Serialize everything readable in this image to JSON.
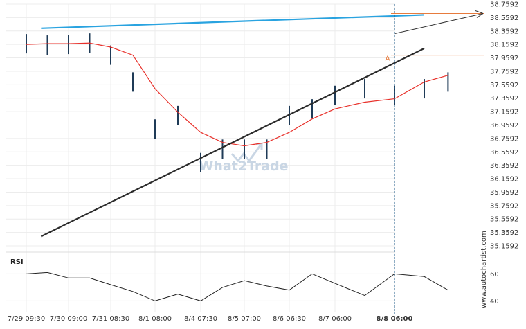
{
  "chart_data": {
    "type": "line",
    "title": "",
    "instrument_panel": {
      "y_ticks": [
        "38.7592",
        "38.5592",
        "38.3592",
        "38.1592",
        "37.9592",
        "37.7592",
        "37.5592",
        "37.3592",
        "37.1592",
        "36.9592",
        "36.7592",
        "36.5592",
        "36.3592",
        "36.1592",
        "35.9592",
        "35.7592",
        "35.5592",
        "35.3592",
        "35.1592"
      ],
      "ylim": [
        35.1592,
        38.7592
      ],
      "x_ticks": [
        "7/29 09:30",
        "7/30 09:00",
        "7/31 08:30",
        "8/1 08:00",
        "8/4 07:30",
        "8/5 07:00",
        "8/6 06:30",
        "8/7 06:00",
        "8/8 06:00"
      ],
      "grid": true,
      "series": [
        {
          "style": "bars",
          "color": "#1f3b57",
          "x": [
            0,
            0.5,
            1,
            1.5,
            2,
            2.5,
            3,
            3.5,
            4,
            4.5,
            5,
            5.5,
            6,
            6.5,
            7,
            7.5,
            8,
            8.5,
            8.9
          ],
          "values": [
            38.17,
            38.15,
            38.16,
            38.18,
            38.0,
            37.6,
            36.9,
            37.1,
            36.4,
            36.6,
            36.6,
            36.6,
            37.1,
            37.2,
            37.4,
            37.5,
            37.4,
            37.5,
            37.6
          ]
        },
        {
          "style": "line",
          "color": "#e8302a",
          "x": [
            0,
            0.5,
            1,
            1.5,
            2,
            2.5,
            3,
            3.5,
            4,
            4.5,
            5,
            5.5,
            6,
            6.5,
            7,
            7.5,
            8,
            8.5,
            8.9
          ],
          "values": [
            38.16,
            38.17,
            38.17,
            38.18,
            38.12,
            38.0,
            37.5,
            37.15,
            36.85,
            36.7,
            36.65,
            36.7,
            36.85,
            37.05,
            37.2,
            37.3,
            37.35,
            37.6,
            37.7
          ]
        }
      ],
      "trendlines": [
        {
          "name": "resistance",
          "color": "#29a3e0",
          "x": [
            0.35,
            8.5
          ],
          "values": [
            38.4,
            38.6
          ]
        },
        {
          "name": "support",
          "color": "#2b2b2b",
          "x": [
            0.35,
            8.5
          ],
          "values": [
            35.3,
            38.1
          ]
        }
      ],
      "horizontal_levels": [
        {
          "color": "#e77b3d",
          "value": 38.62
        },
        {
          "color": "#e77b3d",
          "value": 38.3
        },
        {
          "color": "#e77b3d",
          "value": 38.0
        }
      ],
      "marker_label": "A",
      "projection_arrow_color": "#333333",
      "current_time_line_color": "#1f5b8a"
    },
    "rsi_panel": {
      "label": "RSI",
      "y_ticks": [
        "60",
        "40"
      ],
      "ylim": [
        32,
        72
      ],
      "x": [
        0,
        0.5,
        1,
        1.5,
        2,
        2.5,
        3,
        3.5,
        4,
        4.5,
        5,
        5.5,
        6,
        6.5,
        7,
        7.5,
        8,
        8.5,
        8.9
      ],
      "values": [
        60,
        61,
        57,
        57,
        52,
        47,
        40,
        45,
        40,
        50,
        55,
        51,
        48,
        60,
        53,
        44,
        60,
        58,
        48
      ],
      "color": "#222222"
    }
  },
  "watermark": {
    "brand": "What2Trade"
  },
  "credit": "www.autochartist.com"
}
